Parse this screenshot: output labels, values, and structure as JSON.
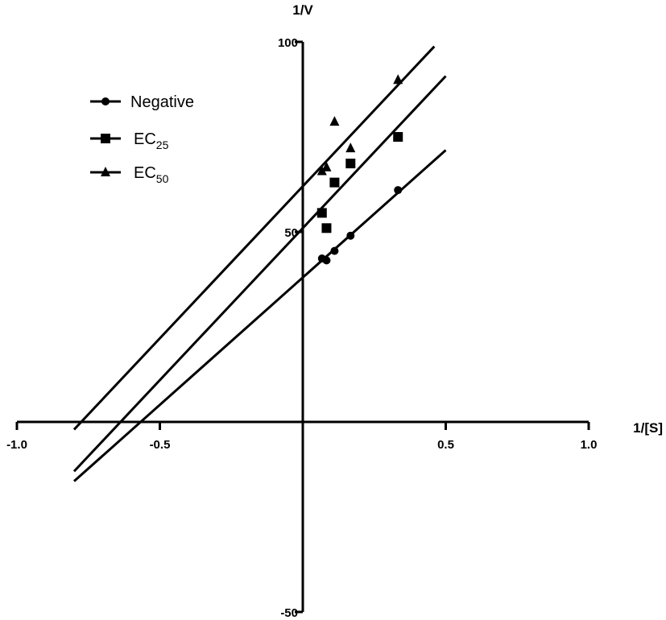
{
  "chart_data": {
    "type": "scatter",
    "title": "",
    "xlabel": "1/[S]",
    "ylabel": "1/V",
    "xlim": [
      -1.0,
      1.0
    ],
    "ylim": [
      -50,
      100
    ],
    "x_ticks": [
      -1.0,
      -0.5,
      0.5,
      1.0
    ],
    "x_tick_labels": [
      "-1.0",
      "-0.5",
      "0.5",
      "1.0"
    ],
    "y_ticks": [
      -50,
      50,
      100
    ],
    "y_tick_labels": [
      "-50",
      "50",
      "100"
    ],
    "grid": false,
    "legend_position": "top-left",
    "series": [
      {
        "name": "Negative",
        "name_main": "Negative",
        "name_sub": "",
        "marker": "circle",
        "points": [
          [
            0.067,
            43
          ],
          [
            0.083,
            42.5
          ],
          [
            0.111,
            45
          ],
          [
            0.167,
            49
          ],
          [
            0.333,
            61
          ]
        ],
        "fit_line": {
          "x_start": -0.8,
          "x_end": 0.5,
          "slope": 67,
          "intercept": 38
        }
      },
      {
        "name": "EC25",
        "name_main": "EC",
        "name_sub": "25",
        "marker": "square",
        "points": [
          [
            0.067,
            55
          ],
          [
            0.083,
            51
          ],
          [
            0.111,
            63
          ],
          [
            0.167,
            68
          ],
          [
            0.333,
            75
          ]
        ],
        "fit_line": {
          "x_start": -0.8,
          "x_end": 0.5,
          "slope": 80,
          "intercept": 51
        }
      },
      {
        "name": "EC50",
        "name_main": "EC",
        "name_sub": "50",
        "marker": "triangle",
        "points": [
          [
            0.067,
            66
          ],
          [
            0.083,
            67
          ],
          [
            0.111,
            79
          ],
          [
            0.167,
            72
          ],
          [
            0.333,
            90
          ]
        ],
        "fit_line": {
          "x_start": -0.8,
          "x_end": 0.46,
          "slope": 80,
          "intercept": 62
        }
      }
    ]
  }
}
